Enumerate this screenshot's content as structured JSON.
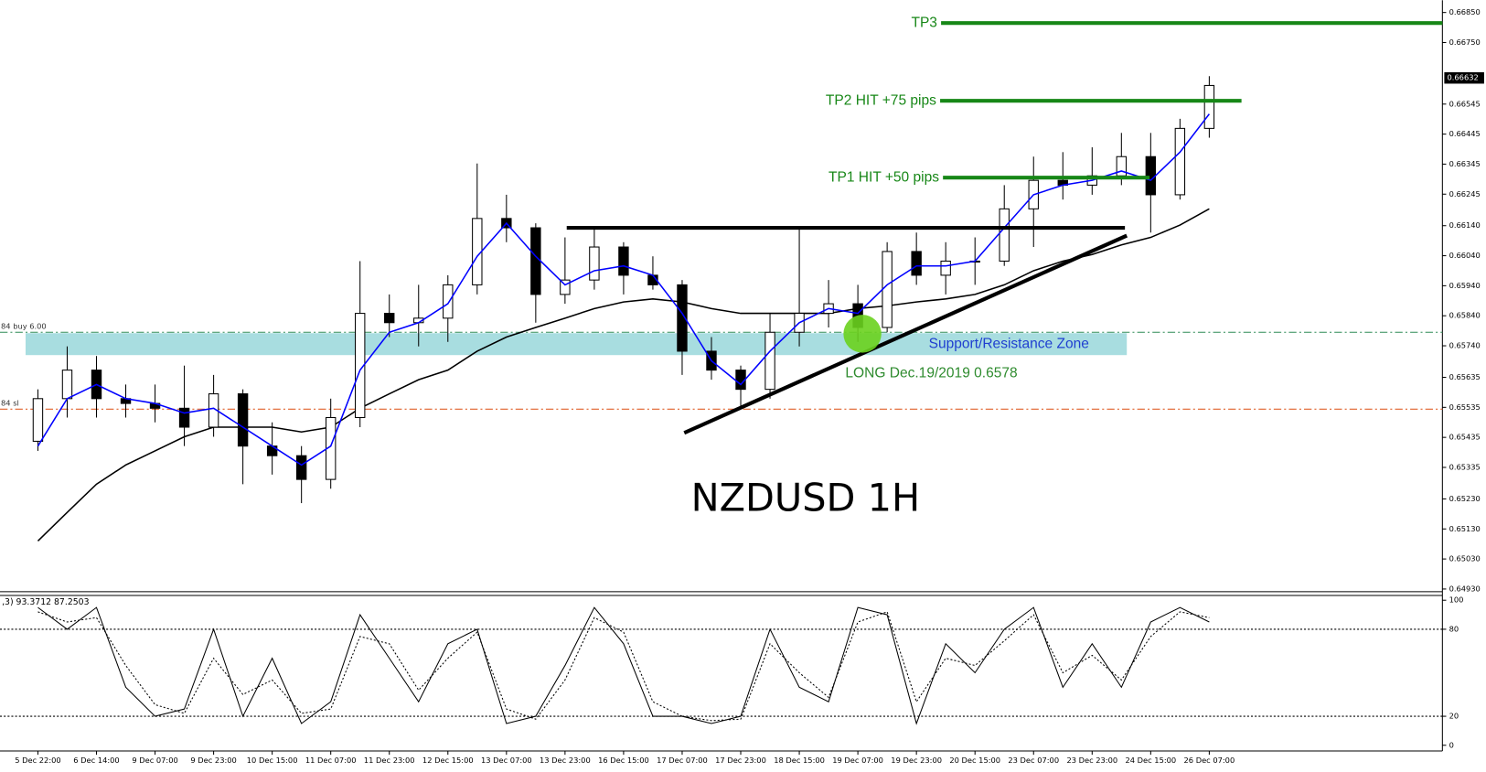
{
  "chart_data": [
    {
      "type": "candlestick",
      "watermark": "NZDUSD 1H",
      "categories": [
        "5 Dec 22:00",
        null,
        "6 Dec 14:00",
        null,
        "9 Dec 07:00",
        null,
        "9 Dec 23:00",
        null,
        "10 Dec 15:00",
        null,
        "11 Dec 07:00",
        null,
        "11 Dec 23:00",
        null,
        "12 Dec 15:00",
        null,
        "13 Dec 07:00",
        null,
        "13 Dec 23:00",
        null,
        "16 Dec 15:00",
        null,
        "17 Dec 07:00",
        null,
        "17 Dec 23:00",
        null,
        "18 Dec 15:00",
        null,
        "19 Dec 07:00",
        null,
        "19 Dec 23:00",
        null,
        "20 Dec 15:00",
        null,
        "23 Dec 07:00",
        null,
        "23 Dec 23:00",
        null,
        "24 Dec 15:00",
        null,
        "26 Dec 07:00"
      ],
      "open": [
        0.65422,
        0.65564,
        0.65659,
        0.65564,
        0.65548,
        0.65532,
        0.65469,
        0.6558,
        0.65406,
        0.65374,
        0.65295,
        0.65501,
        0.65848,
        0.65817,
        0.65832,
        0.65943,
        0.66164,
        0.66133,
        0.65911,
        0.65959,
        0.66069,
        0.65975,
        0.65943,
        0.65722,
        0.65659,
        0.65595,
        0.65785,
        0.65848,
        0.6588,
        0.65801,
        0.66054,
        0.65975,
        0.66022,
        0.66022,
        0.66196,
        0.66291,
        0.66275,
        0.66306,
        0.6637,
        0.66243,
        0.66464
      ],
      "high": [
        0.65595,
        0.65738,
        0.65706,
        0.65611,
        0.65611,
        0.65674,
        0.65643,
        0.65595,
        0.65485,
        0.65406,
        0.65564,
        0.66022,
        0.65911,
        0.65943,
        0.65975,
        0.66347,
        0.66243,
        0.66148,
        0.66101,
        0.66133,
        0.66085,
        0.66038,
        0.65959,
        0.65769,
        0.65674,
        0.65848,
        0.66133,
        0.65959,
        0.65943,
        0.66085,
        0.66117,
        0.66085,
        0.66101,
        0.66275,
        0.6637,
        0.66385,
        0.66401,
        0.66449,
        0.66449,
        0.66496,
        0.66638
      ],
      "low": [
        0.6539,
        0.65501,
        0.65501,
        0.65501,
        0.65485,
        0.65406,
        0.65437,
        0.65279,
        0.65311,
        0.65216,
        0.65264,
        0.65469,
        0.65769,
        0.65738,
        0.65753,
        0.65911,
        0.66085,
        0.65817,
        0.6588,
        0.65927,
        0.65911,
        0.65927,
        0.65643,
        0.65627,
        0.65532,
        0.65564,
        0.65738,
        0.65801,
        0.65753,
        0.65785,
        0.65943,
        0.65911,
        0.65943,
        0.66006,
        0.66069,
        0.66227,
        0.66243,
        0.66275,
        0.66117,
        0.66227,
        0.66433
      ],
      "close": [
        0.65564,
        0.65659,
        0.65564,
        0.65548,
        0.65532,
        0.65469,
        0.6558,
        0.65406,
        0.65374,
        0.65295,
        0.65501,
        0.65848,
        0.65817,
        0.65832,
        0.65943,
        0.66164,
        0.66133,
        0.65911,
        0.65959,
        0.66069,
        0.65975,
        0.65943,
        0.65722,
        0.65659,
        0.65595,
        0.65785,
        0.65848,
        0.6588,
        0.65801,
        0.66054,
        0.65975,
        0.66022,
        0.66022,
        0.66196,
        0.66291,
        0.66275,
        0.66306,
        0.6637,
        0.66243,
        0.66464,
        0.66607
      ],
      "series": [
        {
          "color": "#0000ff",
          "values": [
            0.65406,
            0.65564,
            0.65611,
            0.65564,
            0.65548,
            0.65516,
            0.65532,
            0.65469,
            0.65406,
            0.65343,
            0.65406,
            0.65659,
            0.65785,
            0.65817,
            0.6588,
            0.66038,
            0.66148,
            0.66038,
            0.65943,
            0.6599,
            0.66006,
            0.65975,
            0.65848,
            0.6569,
            0.65611,
            0.65722,
            0.65817,
            0.65864,
            0.65848,
            0.65943,
            0.66006,
            0.66006,
            0.66022,
            0.66133,
            0.66243,
            0.66275,
            0.66291,
            0.66322,
            0.66291,
            0.66385,
            0.66512
          ]
        },
        {
          "color": "#000000",
          "values": [
            0.6509,
            0.65185,
            0.65279,
            0.65343,
            0.6539,
            0.65437,
            0.65469,
            0.65469,
            0.65469,
            0.65453,
            0.65469,
            0.65532,
            0.6558,
            0.65627,
            0.65659,
            0.65722,
            0.65769,
            0.65801,
            0.65832,
            0.65864,
            0.65886,
            0.65896,
            0.65886,
            0.65864,
            0.65848,
            0.65848,
            0.65848,
            0.65848,
            0.65864,
            0.65873,
            0.65886,
            0.65896,
            0.65911,
            0.65943,
            0.6599,
            0.66022,
            0.66044,
            0.66076,
            0.66101,
            0.66142,
            0.66196
          ]
        }
      ],
      "ylim": [
        0.64921,
        0.66891
      ],
      "yticks": [
        {
          "value": 0.6685,
          "label": "0.66850"
        },
        {
          "value": 0.6675,
          "label": "0.66750"
        },
        0.66545,
        0.66445,
        0.66345,
        0.66245,
        {
          "value": 0.6614,
          "label": "0.66140"
        },
        {
          "value": 0.6604,
          "label": "0.66040"
        },
        {
          "value": 0.6594,
          "label": "0.65940"
        },
        {
          "value": 0.6584,
          "label": "0.65840"
        },
        {
          "value": 0.6574,
          "label": "0.65740"
        },
        0.65635,
        0.65535,
        0.65435,
        0.65335,
        {
          "value": 0.6523,
          "label": "0.65230"
        },
        {
          "value": 0.6513,
          "label": "0.65130"
        },
        {
          "value": 0.6503,
          "label": "0.65030"
        },
        {
          "value": 0.6493,
          "label": "0.64930"
        }
      ],
      "last_price": 0.66632,
      "levels": [
        {
          "label": "TP3",
          "value": 0.66815
        },
        {
          "label": "TP2 HIT +75 pips",
          "value": 0.66556
        },
        {
          "label": "TP1 HIT +50 pips",
          "value": 0.663
        }
      ],
      "level_color": "#178717",
      "order_lines": [
        {
          "label": "84 buy 6.00",
          "value": 0.65785,
          "color": "#2e8b57"
        },
        {
          "label": "84 sl",
          "value": 0.65529,
          "color": "#e0602a"
        }
      ],
      "resistance": 0.66133,
      "trendline": [
        0.6545,
        0.66107
      ],
      "zone": {
        "label": "Support/Resistance Zone",
        "range": [
          0.65782,
          0.65709
        ],
        "color": "#a8dde0"
      },
      "entry": {
        "label": "LONG Dec.19/2019 0.6578",
        "value": 0.6578,
        "color": "#6ad11e"
      }
    },
    {
      "type": "line",
      "title": ",3) 93.3712 87.2503",
      "series": [
        {
          "color": "#000000",
          "line_style": "solid",
          "values": [
            95,
            80,
            95,
            40,
            20,
            25,
            80,
            20,
            60,
            15,
            30,
            90,
            60,
            30,
            70,
            80,
            15,
            20,
            55,
            95,
            70,
            20,
            20,
            15,
            20,
            80,
            40,
            30,
            95,
            90,
            15,
            70,
            50,
            80,
            95,
            40,
            70,
            40,
            85,
            95,
            85
          ]
        },
        {
          "color": "#000000",
          "line_style": "dotted",
          "values": [
            92,
            85,
            88,
            55,
            28,
            22,
            60,
            35,
            45,
            22,
            25,
            75,
            70,
            38,
            60,
            78,
            25,
            18,
            45,
            88,
            78,
            30,
            20,
            17,
            18,
            70,
            50,
            33,
            85,
            92,
            30,
            60,
            55,
            72,
            90,
            50,
            62,
            45,
            75,
            92,
            88
          ]
        }
      ],
      "ylim": [
        0,
        100
      ],
      "yticks": [
        100,
        80,
        20,
        0
      ],
      "levels": [
        80,
        20
      ]
    }
  ]
}
